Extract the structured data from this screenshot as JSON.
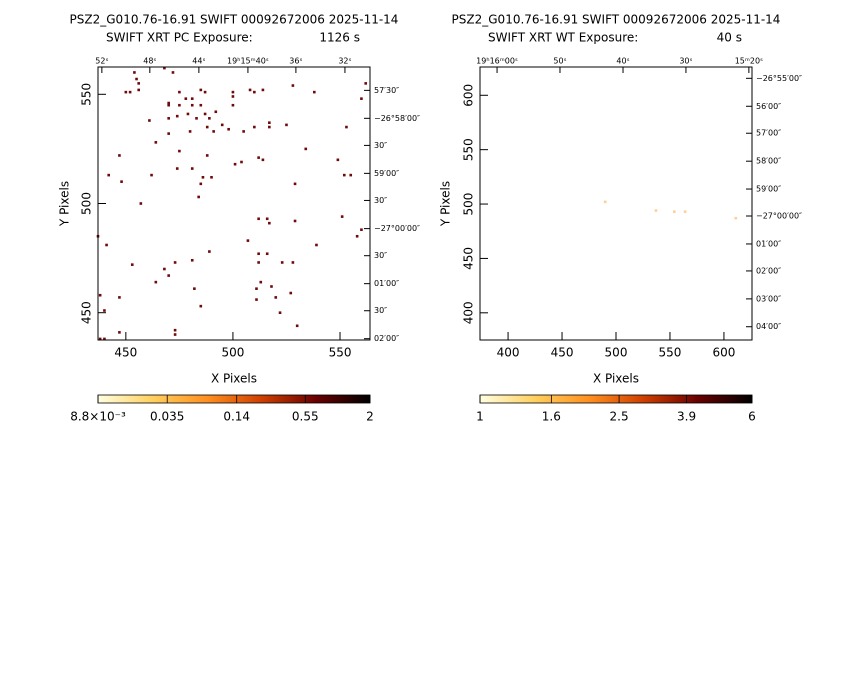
{
  "chart_data": [
    {
      "type": "scatter",
      "title": "PSZ2_G010.76-16.91 SWIFT 00092672006 2025-11-14",
      "subtitle": "SWIFT XRT PC Exposure:",
      "exposure": "1126 s",
      "xlabel": "X Pixels",
      "ylabel": "Y Pixels",
      "xlim": [
        437,
        564
      ],
      "ylim": [
        437.5,
        562.5
      ],
      "xticks": [
        450,
        500,
        550
      ],
      "yticks": [
        450,
        500,
        550
      ],
      "x2ticks": [
        {
          "value": 438.8,
          "label": "52ˢ"
        },
        {
          "value": 461.2,
          "label": "48ˢ"
        },
        {
          "value": 484.1,
          "label": "44ˢ"
        },
        {
          "value": 507.0,
          "label": "19ʰ15ᵐ40ˢ"
        },
        {
          "value": 529.4,
          "label": "36ˢ"
        },
        {
          "value": 552.3,
          "label": "32ˢ"
        }
      ],
      "y2ticks": [
        {
          "value": 551.8,
          "label": "57′30″"
        },
        {
          "value": 539.0,
          "label": "−26°58′00″"
        },
        {
          "value": 526.6,
          "label": "30″"
        },
        {
          "value": 513.8,
          "label": "59′00″"
        },
        {
          "value": 501.4,
          "label": "30″"
        },
        {
          "value": 488.5,
          "label": "−27°00′00″"
        },
        {
          "value": 476.1,
          "label": "30″"
        },
        {
          "value": 463.3,
          "label": "01′00″"
        },
        {
          "value": 450.9,
          "label": "30″"
        },
        {
          "value": 438.1,
          "label": "02′00″"
        }
      ],
      "color": "#6e0a0a",
      "x": [
        454,
        455,
        456,
        468,
        450,
        452,
        456,
        472,
        475,
        478,
        481,
        485,
        487,
        500,
        500,
        508,
        510,
        514,
        528,
        538,
        562,
        560,
        470,
        470,
        475,
        481,
        485,
        487,
        489,
        492,
        500,
        461,
        470,
        474,
        479,
        483,
        488,
        495,
        510,
        517,
        517,
        525,
        553,
        464,
        470,
        480,
        491,
        505,
        498,
        447,
        475,
        488,
        501,
        504,
        512,
        514,
        534,
        549,
        442,
        462,
        474,
        481,
        486,
        490,
        552,
        555,
        448,
        485,
        529,
        457,
        484,
        512,
        516,
        517,
        529,
        551,
        560,
        558,
        437,
        441,
        507,
        539,
        512,
        516,
        512,
        523,
        528,
        489,
        453,
        473,
        468,
        470,
        481,
        464,
        482,
        513,
        518,
        527,
        511,
        520,
        511,
        438,
        447,
        485,
        522,
        440,
        530,
        447,
        473,
        473,
        438,
        440
      ],
      "values": [
        560,
        557,
        555,
        562,
        551,
        551,
        552,
        560,
        551,
        548,
        548,
        552,
        551,
        551,
        549,
        552,
        551,
        552,
        554,
        551,
        555,
        548,
        546,
        545,
        545,
        545,
        545,
        541,
        539,
        542,
        545,
        538,
        539,
        540,
        541,
        539,
        535,
        536,
        535,
        535,
        537,
        536,
        535,
        528,
        532,
        533,
        533,
        533,
        534,
        522,
        524,
        522,
        518,
        519,
        521,
        520,
        525,
        520,
        513,
        513,
        516,
        516,
        512,
        512,
        513,
        513,
        510,
        509,
        509,
        500,
        503,
        493,
        493,
        491,
        492,
        494,
        488,
        485,
        485,
        481,
        483,
        481,
        477,
        477,
        473,
        473,
        473,
        478,
        472,
        473,
        470,
        467,
        474,
        464,
        461,
        464,
        462,
        459,
        456,
        457,
        461,
        458,
        457,
        453,
        450,
        451,
        444,
        441,
        442,
        440,
        438,
        438
      ],
      "colorbar": {
        "log": true,
        "lim": [
          0.0088,
          2
        ],
        "ticks": [
          {
            "value": 0.0088,
            "label": "8.8×10⁻³"
          },
          0.035,
          0.14,
          0.55,
          2
        ],
        "colors": [
          "#ffffe0",
          "#ffd060",
          "#ff9020",
          "#d04000",
          "#6a0000",
          "#000000"
        ]
      }
    },
    {
      "type": "scatter",
      "title": "PSZ2_G010.76-16.91 SWIFT 00092672006 2025-11-14",
      "subtitle": "SWIFT XRT WT Exposure:",
      "exposure": "40 s",
      "xlabel": "X Pixels",
      "ylabel": "Y Pixels",
      "xlim": [
        374,
        626
      ],
      "ylim": [
        375,
        626
      ],
      "xticks": [
        400,
        450,
        500,
        550,
        600
      ],
      "yticks": [
        400,
        450,
        500,
        550,
        600
      ],
      "x2ticks": [
        {
          "value": 389.8,
          "label": "19ʰ16ᵐ00ˢ"
        },
        {
          "value": 448.1,
          "label": "50ˢ"
        },
        {
          "value": 506.5,
          "label": "40ˢ"
        },
        {
          "value": 564.8,
          "label": "30ˢ"
        },
        {
          "value": 623.1,
          "label": "15ᵐ20ˢ"
        }
      ],
      "y2ticks": [
        {
          "value": 615.6,
          "label": "−26°55′00″"
        },
        {
          "value": 589.9,
          "label": "56′00″"
        },
        {
          "value": 565.1,
          "label": "57′00″"
        },
        {
          "value": 539.4,
          "label": "58′00″"
        },
        {
          "value": 513.8,
          "label": "59′00″"
        },
        {
          "value": 489.0,
          "label": "−27°00′00″"
        },
        {
          "value": 463.3,
          "label": "01′00″"
        },
        {
          "value": 438.5,
          "label": "02′00″"
        },
        {
          "value": 412.8,
          "label": "03′00″"
        },
        {
          "value": 387.2,
          "label": "04′00″"
        }
      ],
      "color": "#ffcf99",
      "x": [
        490,
        537,
        554,
        564,
        611
      ],
      "values": [
        502,
        494,
        493,
        493,
        487
      ],
      "colorbar": {
        "log": true,
        "lim": [
          1,
          6
        ],
        "ticks": [
          1,
          1.6,
          2.5,
          3.9,
          6
        ],
        "colors": [
          "#ffffe0",
          "#ffd060",
          "#ff9020",
          "#d04000",
          "#6a0000",
          "#000000"
        ]
      }
    }
  ]
}
